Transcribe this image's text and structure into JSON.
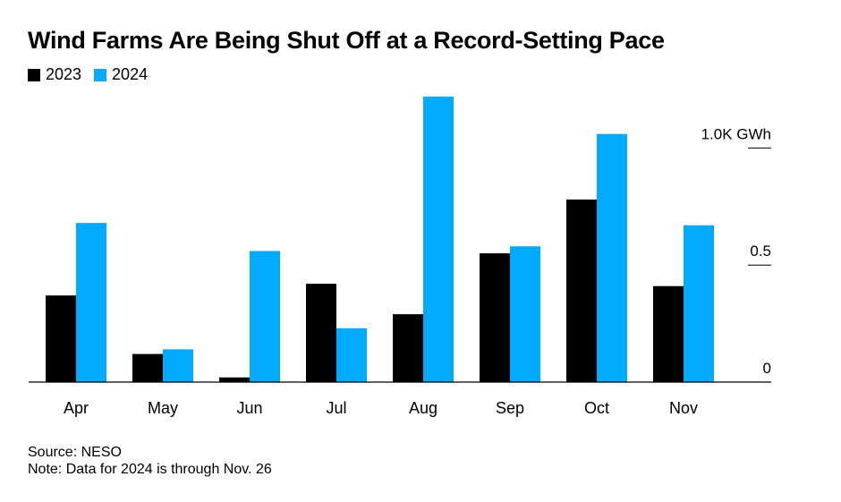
{
  "chart_data": {
    "type": "bar",
    "title": "Wind Farms Are Being Shut Off at a Record-Setting Pace",
    "categories": [
      "Apr",
      "May",
      "Jun",
      "Jul",
      "Aug",
      "Sep",
      "Oct",
      "Nov"
    ],
    "series": [
      {
        "name": "2023",
        "color": "#000000",
        "values": [
          0.37,
          0.12,
          0.02,
          0.42,
          0.29,
          0.55,
          0.78,
          0.41
        ]
      },
      {
        "name": "2024",
        "color": "#00aaff",
        "values": [
          0.68,
          0.14,
          0.56,
          0.23,
          1.22,
          0.58,
          1.06,
          0.67
        ]
      }
    ],
    "ylim": [
      0,
      1.25
    ],
    "yticks": [
      {
        "value": 0,
        "label": "0"
      },
      {
        "value": 0.5,
        "label": "0.5"
      },
      {
        "value": 1.0,
        "label": "1.0K GWh"
      }
    ],
    "legend": "top-left",
    "grid": false
  },
  "footer": {
    "source": "Source: NESO",
    "note": "Note: Data for 2024 is through Nov. 26"
  }
}
